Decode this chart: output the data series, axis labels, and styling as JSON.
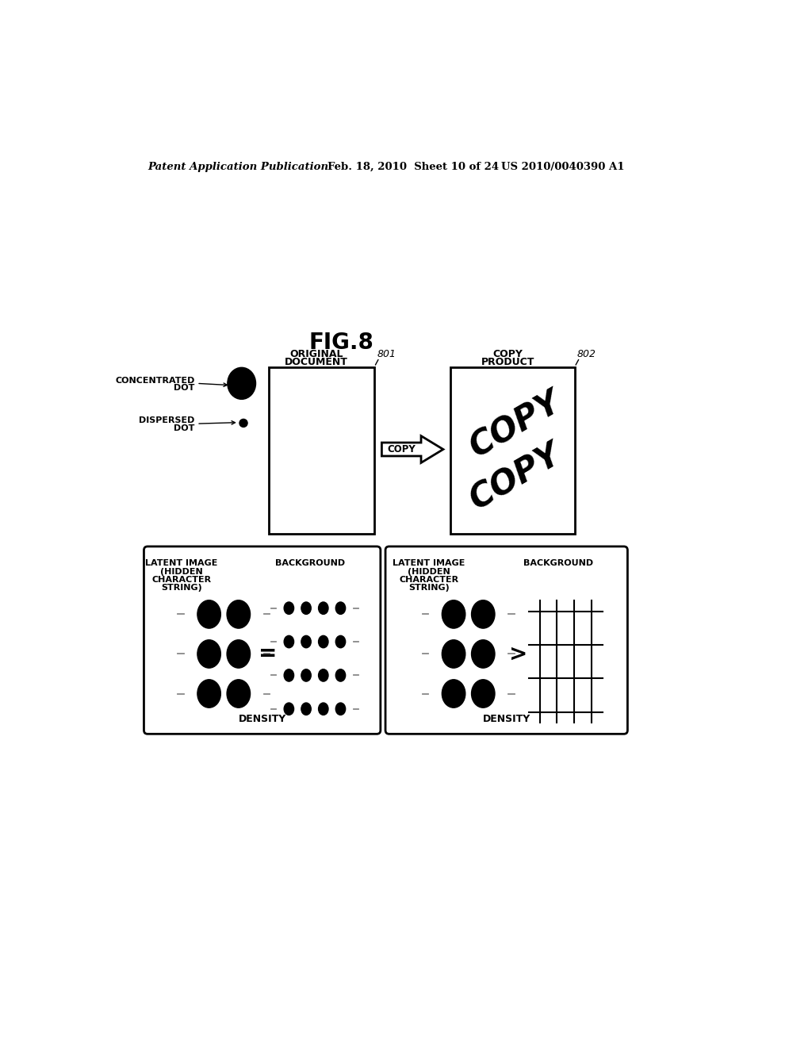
{
  "title": "FIG.8",
  "header_left": "Patent Application Publication",
  "header_mid": "Feb. 18, 2010  Sheet 10 of 24",
  "header_right": "US 2010/0040390 A1",
  "bg_color": "#ffffff",
  "label_801": "801",
  "label_802": "802"
}
